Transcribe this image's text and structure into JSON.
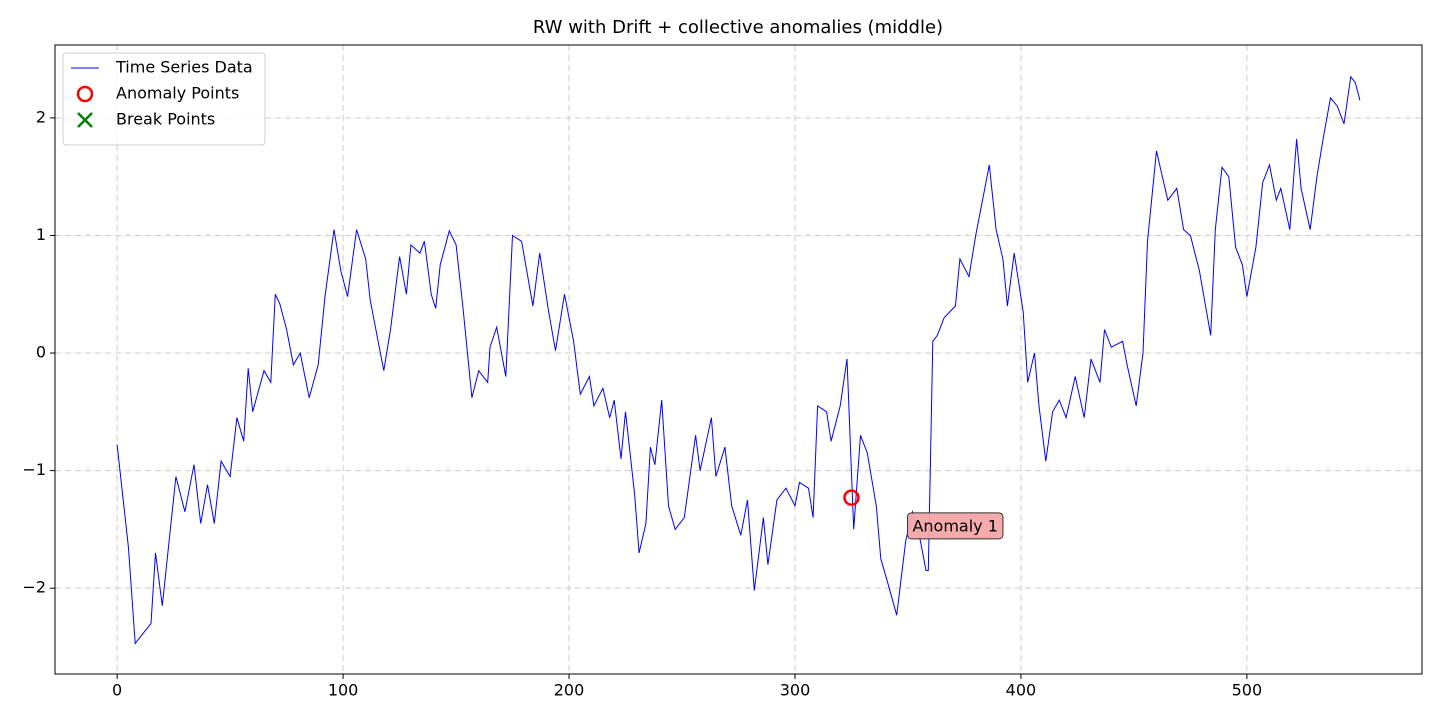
{
  "chart_data": {
    "type": "line",
    "title": "RW with Drift + collective anomalies (middle)",
    "xlim": [
      -27.5,
      577.5
    ],
    "ylim": [
      -2.73,
      2.62
    ],
    "xticks": [
      0,
      100,
      200,
      300,
      400,
      500
    ],
    "yticks": [
      {
        "value": -2,
        "label": "−2"
      },
      {
        "value": -1,
        "label": "−1"
      },
      0,
      1,
      2
    ],
    "grid": true,
    "legend": "upper left",
    "series": [
      {
        "name": "Time Series Data",
        "color": "#0000ff",
        "marker": "line",
        "x": [
          0,
          5,
          8,
          15,
          17,
          20,
          26,
          30,
          34,
          37,
          40,
          43,
          46,
          50,
          53,
          56,
          58,
          60,
          65,
          68,
          70,
          72,
          75,
          78,
          81,
          85,
          89,
          92,
          96,
          99,
          102,
          106,
          110,
          112,
          118,
          121,
          125,
          128,
          130,
          134,
          136,
          139,
          141,
          143,
          147,
          150,
          153,
          157,
          160,
          164,
          165,
          168,
          172,
          175,
          179,
          184,
          187,
          191,
          194,
          198,
          202,
          205,
          209,
          211,
          215,
          218,
          220,
          223,
          225,
          229,
          231,
          234,
          236,
          238,
          241,
          244,
          247,
          251,
          256,
          258,
          263,
          265,
          269,
          272,
          276,
          279,
          282,
          286,
          288,
          292,
          296,
          300,
          302,
          306,
          308,
          310,
          314,
          316,
          320,
          323,
          326,
          329,
          332,
          336,
          338,
          341,
          345,
          349,
          352,
          355,
          358,
          359,
          361,
          363,
          366,
          371,
          373,
          377,
          380,
          384,
          386,
          389,
          392,
          394,
          397,
          401,
          403,
          406,
          408,
          411,
          414,
          417,
          420,
          424,
          428,
          431,
          435,
          437,
          440,
          445,
          447,
          451,
          454,
          456,
          460,
          462,
          465,
          469,
          472,
          475,
          479,
          484,
          486,
          489,
          492,
          495,
          498,
          500,
          504,
          507,
          510,
          513,
          515,
          519,
          522,
          524,
          528,
          531,
          534,
          537,
          540,
          543,
          546,
          548,
          550
        ],
        "values": [
          -0.78,
          -1.65,
          -2.47,
          -2.3,
          -1.7,
          -2.15,
          -1.05,
          -1.35,
          -0.95,
          -1.45,
          -1.12,
          -1.45,
          -0.92,
          -1.05,
          -0.55,
          -0.75,
          -0.13,
          -0.5,
          -0.15,
          -0.25,
          0.5,
          0.42,
          0.2,
          -0.1,
          0.0,
          -0.38,
          -0.1,
          0.48,
          1.05,
          0.7,
          0.48,
          1.05,
          0.8,
          0.45,
          -0.15,
          0.2,
          0.82,
          0.5,
          0.92,
          0.85,
          0.95,
          0.5,
          0.38,
          0.75,
          1.04,
          0.92,
          0.4,
          -0.38,
          -0.15,
          -0.25,
          0.05,
          0.22,
          -0.2,
          1.0,
          0.95,
          0.4,
          0.85,
          0.35,
          0.02,
          0.5,
          0.1,
          -0.35,
          -0.2,
          -0.45,
          -0.3,
          -0.55,
          -0.4,
          -0.9,
          -0.5,
          -1.2,
          -1.7,
          -1.45,
          -0.8,
          -0.95,
          -0.4,
          -1.3,
          -1.5,
          -1.4,
          -0.7,
          -1.0,
          -0.55,
          -1.05,
          -0.8,
          -1.3,
          -1.55,
          -1.25,
          -2.02,
          -1.4,
          -1.8,
          -1.25,
          -1.15,
          -1.3,
          -1.1,
          -1.15,
          -1.4,
          -0.45,
          -0.5,
          -0.75,
          -0.45,
          -0.05,
          -1.5,
          -0.7,
          -0.85,
          -1.3,
          -1.75,
          -1.95,
          -2.23,
          -1.6,
          -1.35,
          -1.55,
          -1.85,
          -1.85,
          0.1,
          0.15,
          0.3,
          0.4,
          0.8,
          0.65,
          1.0,
          1.4,
          1.6,
          1.05,
          0.8,
          0.4,
          0.85,
          0.35,
          -0.25,
          0.0,
          -0.45,
          -0.92,
          -0.5,
          -0.4,
          -0.55,
          -0.2,
          -0.55,
          -0.05,
          -0.25,
          0.2,
          0.05,
          0.1,
          -0.1,
          -0.45,
          0.0,
          0.95,
          1.72,
          1.55,
          1.3,
          1.4,
          1.05,
          1.0,
          0.7,
          0.15,
          1.05,
          1.58,
          1.5,
          0.9,
          0.75,
          0.48,
          0.9,
          1.45,
          1.6,
          1.3,
          1.4,
          1.05,
          1.82,
          1.4,
          1.05,
          1.5,
          1.85,
          2.17,
          2.1,
          1.95,
          2.35,
          2.3,
          2.15
        ]
      },
      {
        "name": "Anomaly Points",
        "color": "#ff0000",
        "marker": "circle",
        "x": [
          325
        ],
        "values": [
          -1.23
        ]
      },
      {
        "name": "Break Points",
        "color": "#008000",
        "marker": "x",
        "x": [],
        "values": []
      }
    ],
    "annotations": [
      {
        "text": "Anomaly 1",
        "x": 352,
        "y": -1.47,
        "color": "#f4a6a6"
      }
    ]
  }
}
